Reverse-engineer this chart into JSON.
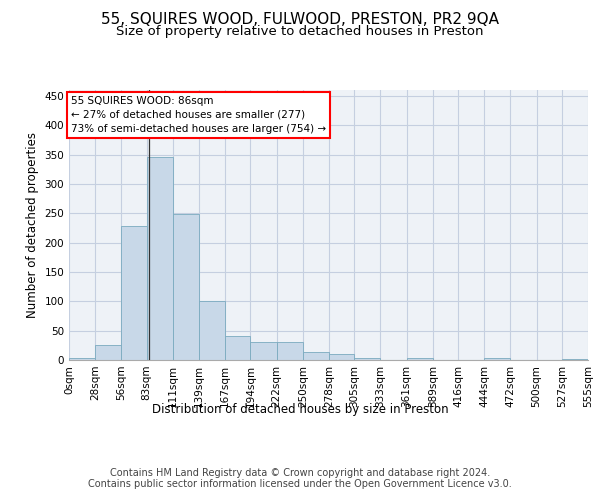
{
  "title1": "55, SQUIRES WOOD, FULWOOD, PRESTON, PR2 9QA",
  "title2": "Size of property relative to detached houses in Preston",
  "xlabel": "Distribution of detached houses by size in Preston",
  "ylabel": "Number of detached properties",
  "bar_color": "#c8d8e8",
  "bar_edge_color": "#7aaabf",
  "bin_edges": [
    0,
    28,
    56,
    83,
    111,
    139,
    167,
    194,
    222,
    250,
    278,
    305,
    333,
    361,
    389,
    416,
    444,
    472,
    500,
    527,
    555
  ],
  "bar_values": [
    3,
    25,
    228,
    346,
    248,
    101,
    41,
    31,
    30,
    13,
    10,
    4,
    0,
    4,
    0,
    0,
    3,
    0,
    0,
    2
  ],
  "tick_labels": [
    "0sqm",
    "28sqm",
    "56sqm",
    "83sqm",
    "111sqm",
    "139sqm",
    "167sqm",
    "194sqm",
    "222sqm",
    "250sqm",
    "278sqm",
    "305sqm",
    "333sqm",
    "361sqm",
    "389sqm",
    "416sqm",
    "444sqm",
    "472sqm",
    "500sqm",
    "527sqm",
    "555sqm"
  ],
  "ylim": [
    0,
    460
  ],
  "yticks": [
    0,
    50,
    100,
    150,
    200,
    250,
    300,
    350,
    400,
    450
  ],
  "property_line_x": 86,
  "annotation_text1": "55 SQUIRES WOOD: 86sqm",
  "annotation_text2": "← 27% of detached houses are smaller (277)",
  "annotation_text3": "73% of semi-detached houses are larger (754) →",
  "footer1": "Contains HM Land Registry data © Crown copyright and database right 2024.",
  "footer2": "Contains public sector information licensed under the Open Government Licence v3.0.",
  "bg_color": "#eef2f7",
  "grid_color": "#c5cfe0",
  "title1_fontsize": 11,
  "title2_fontsize": 9.5,
  "axis_label_fontsize": 8.5,
  "tick_fontsize": 7.5,
  "footer_fontsize": 7,
  "annotation_fontsize": 7.5
}
